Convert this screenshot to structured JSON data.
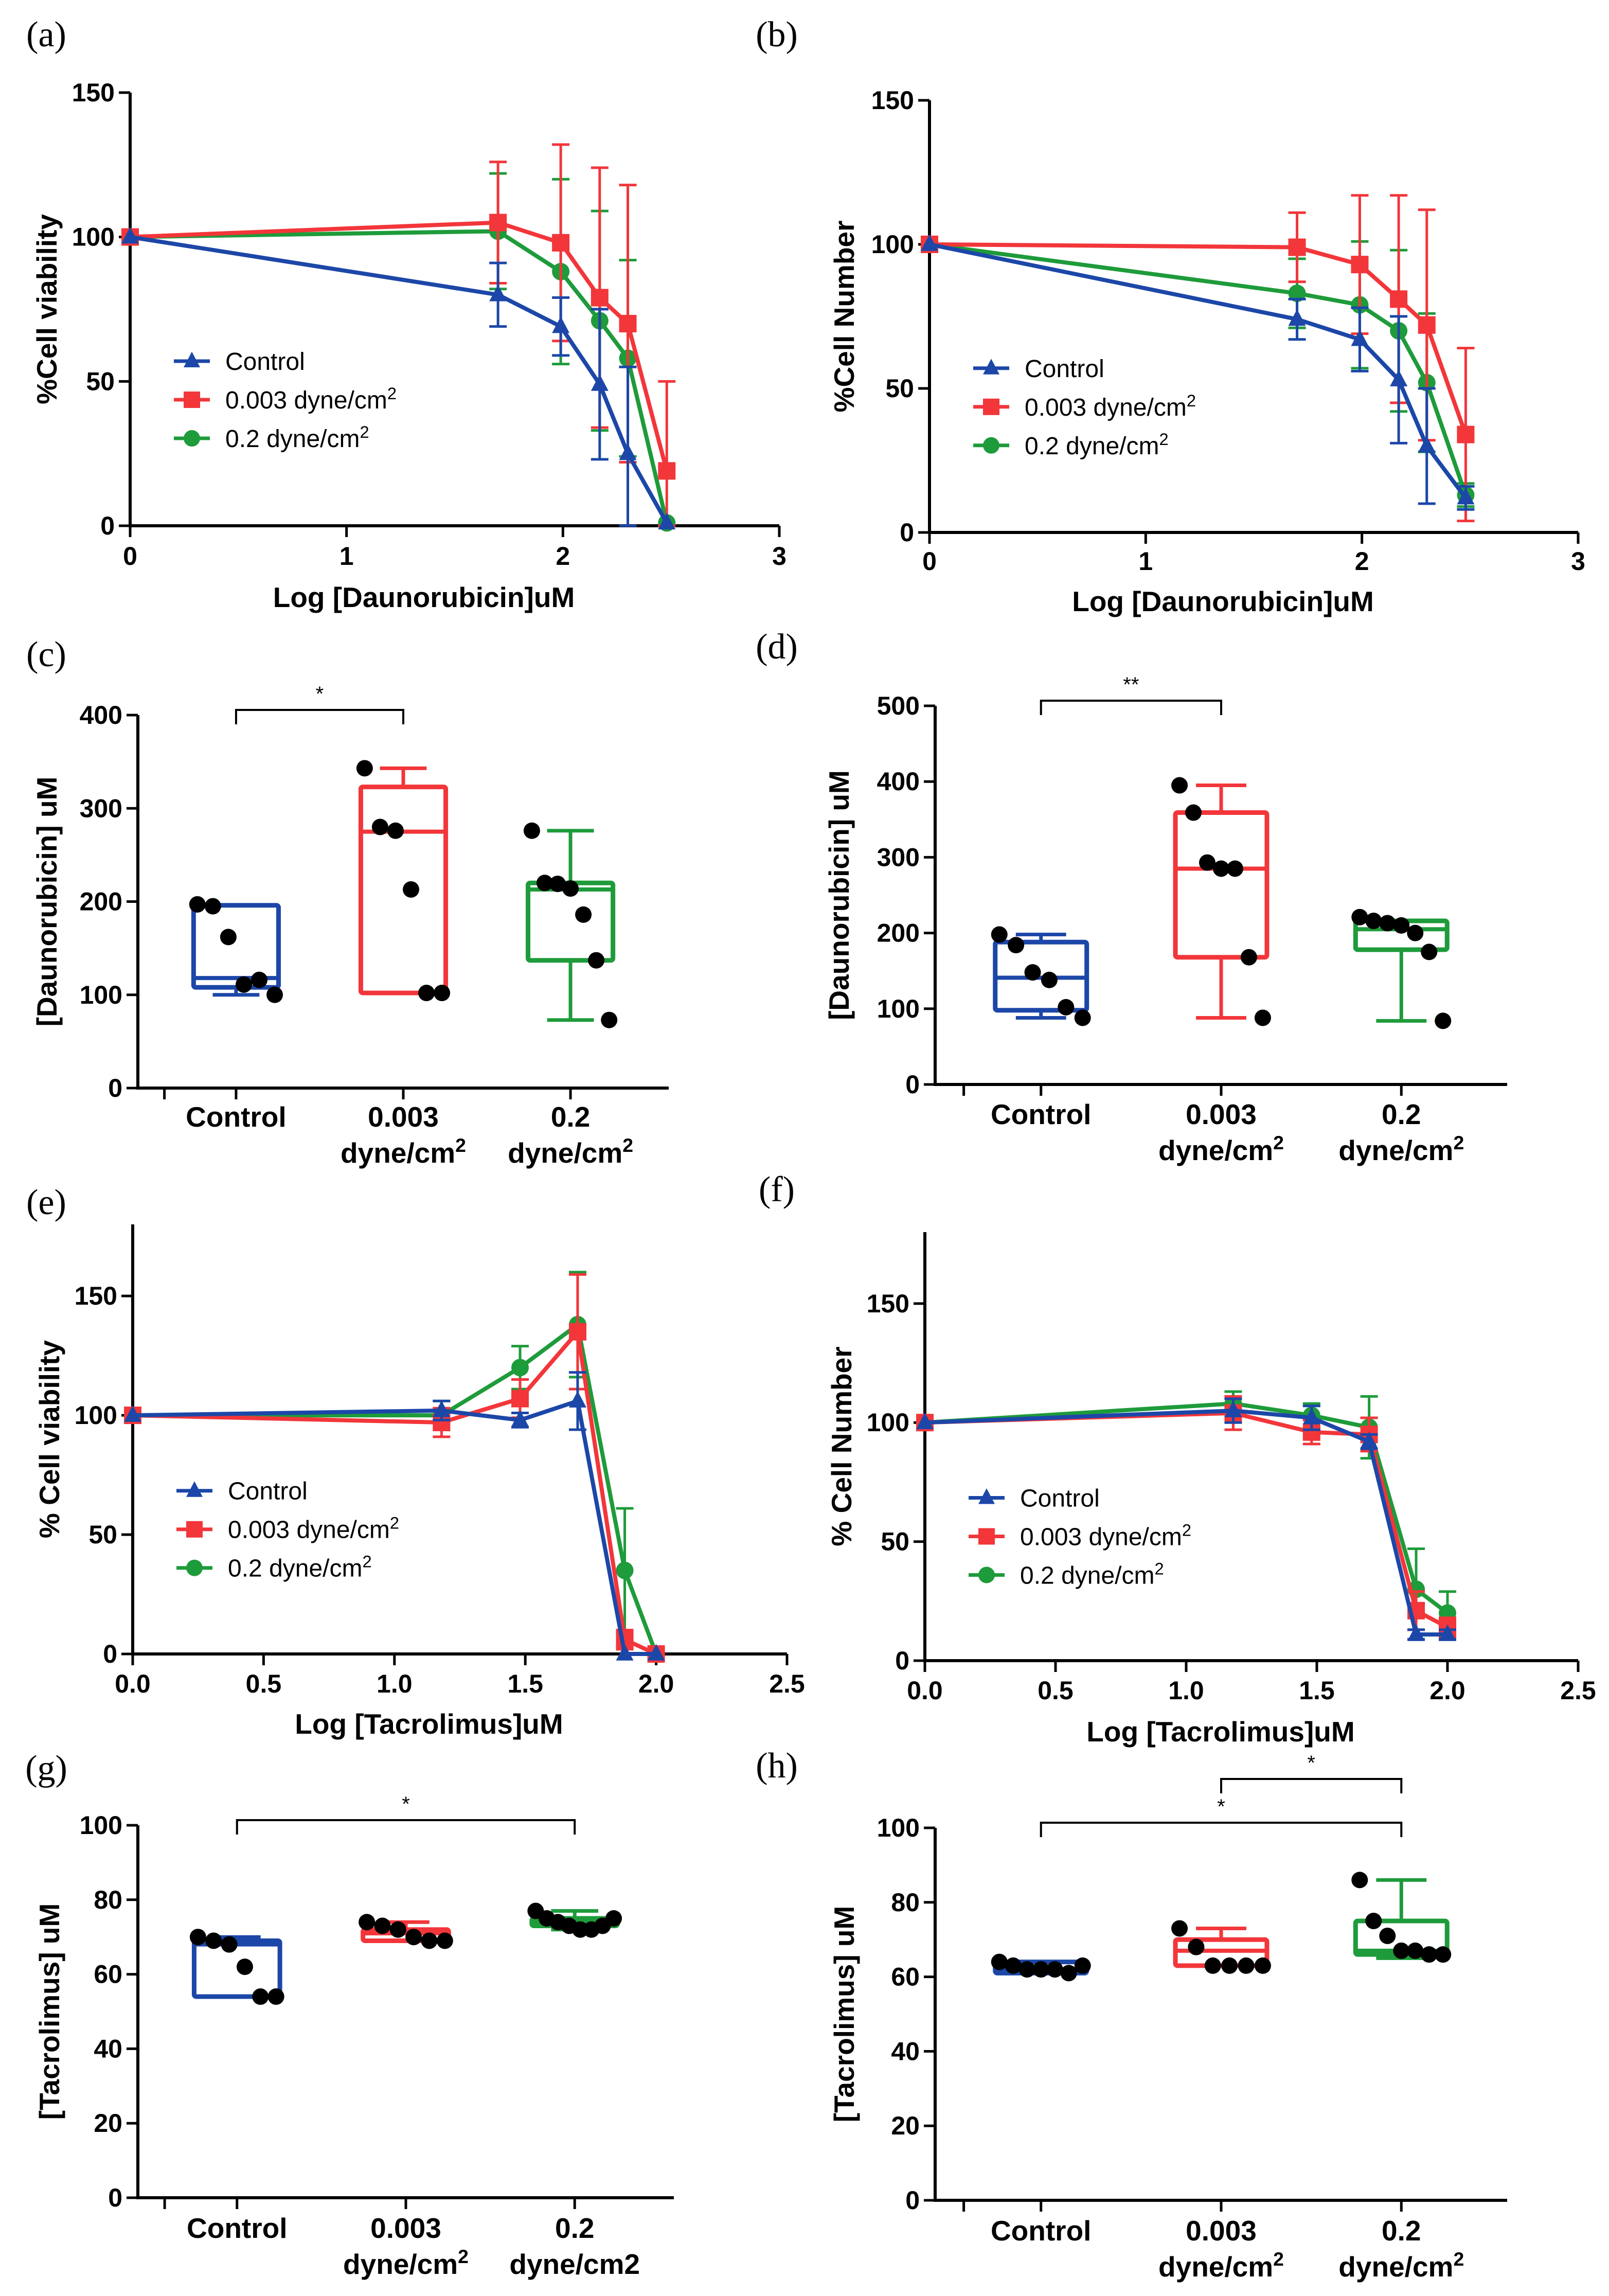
{
  "colors": {
    "control": "#1c47a8",
    "low": "#f2363a",
    "high": "#1e9b3a"
  },
  "chart_data": [
    {
      "panel": "(a)",
      "type": "line",
      "xlabel": "Log [Daunorubicin]uM",
      "ylabel": "%Cell viability",
      "xlim": [
        0,
        3
      ],
      "ylim": [
        0,
        150
      ],
      "xticks": [
        "0",
        "1",
        "2",
        "3"
      ],
      "yticks": [
        "0",
        "50",
        "100",
        "150"
      ],
      "legend_position": "bottom-left",
      "series": [
        {
          "name": "Control",
          "marker": "triangle",
          "x": [
            0,
            1.7,
            1.99,
            2.17,
            2.3,
            2.48
          ],
          "y": [
            100,
            80,
            69,
            49,
            25,
            1
          ],
          "err": [
            0,
            11,
            10,
            26,
            30,
            0
          ]
        },
        {
          "name": "0.003 dyne/cm²",
          "marker": "square",
          "x": [
            0,
            1.7,
            1.99,
            2.17,
            2.3,
            2.48
          ],
          "y": [
            100,
            105,
            98,
            79,
            70,
            19
          ],
          "err": [
            0,
            21,
            34,
            45,
            48,
            31
          ]
        },
        {
          "name": "0.2 dyne/cm²",
          "marker": "circle",
          "x": [
            0,
            1.7,
            1.99,
            2.17,
            2.3,
            2.48
          ],
          "y": [
            100,
            102,
            88,
            71,
            58,
            1
          ],
          "err": [
            0,
            20,
            32,
            38,
            34,
            0
          ]
        }
      ]
    },
    {
      "panel": "(b)",
      "type": "line",
      "xlabel": "Log [Daunorubicin]uM",
      "ylabel": "%Cell Number",
      "xlim": [
        0,
        3
      ],
      "ylim": [
        0,
        150
      ],
      "xticks": [
        "0",
        "1",
        "2",
        "3"
      ],
      "yticks": [
        "0",
        "50",
        "100",
        "150"
      ],
      "legend_position": "bottom-left",
      "series": [
        {
          "name": "Control",
          "marker": "triangle",
          "x": [
            0,
            1.7,
            1.99,
            2.17,
            2.3,
            2.48
          ],
          "y": [
            100,
            74,
            67,
            53,
            30,
            12
          ],
          "err": [
            0,
            7,
            11,
            22,
            20,
            4
          ]
        },
        {
          "name": "0.003 dyne/cm²",
          "marker": "square",
          "x": [
            0,
            1.7,
            1.99,
            2.17,
            2.3,
            2.48
          ],
          "y": [
            100,
            99,
            93,
            81,
            72,
            34
          ],
          "err": [
            0,
            12,
            24,
            36,
            40,
            30
          ]
        },
        {
          "name": "0.2 dyne/cm²",
          "marker": "circle",
          "x": [
            0,
            1.7,
            1.99,
            2.17,
            2.3,
            2.48
          ],
          "y": [
            100,
            83,
            79,
            70,
            52,
            13
          ],
          "err": [
            0,
            12,
            22,
            28,
            24,
            4
          ]
        }
      ]
    },
    {
      "panel": "(c)",
      "type": "box",
      "ylabel": "[Daunorubicin] uM",
      "ylim": [
        0,
        400
      ],
      "yticks": [
        "0",
        "100",
        "200",
        "300",
        "400"
      ],
      "categories": [
        [
          "Control",
          ""
        ],
        [
          "0.003",
          "dyne/cm²"
        ],
        [
          "0.2",
          "dyne/cm²"
        ]
      ],
      "boxes": [
        {
          "min": 100,
          "q1": 108,
          "median": 118,
          "q3": 196,
          "max": 196,
          "points": [
            197,
            195,
            162,
            111,
            116,
            100
          ]
        },
        {
          "min": 102,
          "q1": 102,
          "median": 275,
          "q3": 323,
          "max": 343,
          "points": [
            343,
            280,
            276,
            213,
            102,
            102
          ]
        },
        {
          "min": 73,
          "q1": 137,
          "median": 213,
          "q3": 220,
          "max": 276,
          "points": [
            276,
            220,
            219,
            214,
            186,
            137,
            73
          ]
        }
      ],
      "significance": [
        {
          "from": 0,
          "to": 1,
          "label": "*"
        }
      ]
    },
    {
      "panel": "(d)",
      "type": "box",
      "ylabel": "[Daunorubicin] uM",
      "ylim": [
        0,
        500
      ],
      "yticks": [
        "0",
        "100",
        "200",
        "300",
        "400",
        "500"
      ],
      "categories": [
        [
          "Control",
          ""
        ],
        [
          "0.003",
          "dyne/cm²"
        ],
        [
          "0.2",
          "dyne/cm²"
        ]
      ],
      "boxes": [
        {
          "min": 88,
          "q1": 98,
          "median": 141,
          "q3": 188,
          "max": 198,
          "points": [
            198,
            184,
            148,
            138,
            102,
            88
          ]
        },
        {
          "min": 88,
          "q1": 168,
          "median": 285,
          "q3": 359,
          "max": 395,
          "points": [
            395,
            359,
            293,
            285,
            285,
            168,
            88
          ]
        },
        {
          "min": 84,
          "q1": 178,
          "median": 205,
          "q3": 216,
          "max": 216,
          "points": [
            221,
            216,
            213,
            210,
            200,
            175,
            84
          ]
        }
      ],
      "significance": [
        {
          "from": 0,
          "to": 1,
          "label": "**"
        }
      ]
    },
    {
      "panel": "(e)",
      "type": "line",
      "xlabel": "Log [Tacrolimus]uM",
      "ylabel": "% Cell viability",
      "xlim": [
        0,
        2.5
      ],
      "ylim": [
        0,
        180
      ],
      "xticks": [
        "0.0",
        "0.5",
        "1.0",
        "1.5",
        "2.0",
        "2.5"
      ],
      "yticks": [
        "0",
        "50",
        "100",
        "150"
      ],
      "legend_position": "bottom-left",
      "series": [
        {
          "name": "Control",
          "marker": "triangle",
          "x": [
            0,
            1.18,
            1.48,
            1.7,
            1.88,
            2.0
          ],
          "y": [
            100,
            102,
            98,
            106,
            0,
            0
          ],
          "err": [
            0,
            4,
            3,
            12,
            0,
            0
          ]
        },
        {
          "name": "0.003 dyne/cm²",
          "marker": "square",
          "x": [
            0,
            1.18,
            1.48,
            1.7,
            1.88,
            2.0
          ],
          "y": [
            100,
            97,
            107,
            135,
            6,
            0
          ],
          "err": [
            0,
            6,
            8,
            24,
            4,
            0
          ]
        },
        {
          "name": "0.2 dyne/cm²",
          "marker": "circle",
          "x": [
            0,
            1.18,
            1.48,
            1.7,
            1.88,
            2.0
          ],
          "y": [
            100,
            100,
            120,
            138,
            35,
            0
          ],
          "err": [
            0,
            6,
            9,
            22,
            26,
            0
          ]
        }
      ]
    },
    {
      "panel": "(f)",
      "type": "line",
      "xlabel": "Log [Tacrolimus]uM",
      "ylabel": "% Cell Number",
      "xlim": [
        0,
        2.5
      ],
      "ylim": [
        0,
        180
      ],
      "xticks": [
        "0.0",
        "0.5",
        "1.0",
        "1.5",
        "2.0",
        "2.5"
      ],
      "yticks": [
        "0",
        "50",
        "100",
        "150"
      ],
      "legend_position": "bottom-left",
      "series": [
        {
          "name": "Control",
          "marker": "triangle",
          "x": [
            0,
            1.18,
            1.48,
            1.7,
            1.88,
            2.0
          ],
          "y": [
            100,
            105,
            102,
            92,
            11,
            11
          ],
          "err": [
            0,
            5,
            5,
            3,
            2,
            2
          ]
        },
        {
          "name": "0.003 dyne/cm²",
          "marker": "square",
          "x": [
            0,
            1.18,
            1.48,
            1.7,
            1.88,
            2.0
          ],
          "y": [
            100,
            104,
            96,
            95,
            21,
            14
          ],
          "err": [
            0,
            7,
            5,
            7,
            8,
            4
          ]
        },
        {
          "name": "0.2 dyne/cm²",
          "marker": "circle",
          "x": [
            0,
            1.18,
            1.48,
            1.7,
            1.88,
            2.0
          ],
          "y": [
            100,
            108,
            103,
            98,
            30,
            20
          ],
          "err": [
            0,
            5,
            5,
            13,
            17,
            9
          ]
        }
      ]
    },
    {
      "panel": "(g)",
      "type": "box",
      "ylabel": "[Tacrolimus] uM",
      "ylim": [
        0,
        100
      ],
      "yticks": [
        "0",
        "20",
        "40",
        "60",
        "80",
        "100"
      ],
      "categories": [
        [
          "Control",
          ""
        ],
        [
          "0.003",
          "dyne/cm²"
        ],
        [
          "0.2",
          "dyne/cm2"
        ]
      ],
      "boxes": [
        {
          "min": 54,
          "q1": 54,
          "median": 68,
          "q3": 69,
          "max": 70,
          "points": [
            70,
            69,
            68,
            62,
            54,
            54
          ]
        },
        {
          "min": 69,
          "q1": 69,
          "median": 71,
          "q3": 72,
          "max": 74,
          "points": [
            74,
            73,
            72,
            70,
            69,
            69
          ]
        },
        {
          "min": 72,
          "q1": 73,
          "median": 74,
          "q3": 75,
          "max": 77,
          "points": [
            77,
            75,
            74,
            73,
            72,
            72,
            73,
            75
          ]
        }
      ],
      "significance": [
        {
          "from": 0,
          "to": 2,
          "label": "*"
        }
      ]
    },
    {
      "panel": "(h)",
      "type": "box",
      "ylabel": "[Tacrolimus] uM",
      "ylim": [
        0,
        100
      ],
      "yticks": [
        "0",
        "20",
        "40",
        "60",
        "80",
        "100"
      ],
      "categories": [
        [
          "Control",
          ""
        ],
        [
          "0.003",
          "dyne/cm²"
        ],
        [
          "0.2",
          "dyne/cm²"
        ]
      ],
      "boxes": [
        {
          "min": 61,
          "q1": 61,
          "median": 62,
          "q3": 64,
          "max": 64,
          "points": [
            64,
            63,
            62,
            62,
            62,
            61,
            63
          ]
        },
        {
          "min": 63,
          "q1": 63,
          "median": 67,
          "q3": 70,
          "max": 73,
          "points": [
            73,
            68,
            63,
            63,
            63,
            63
          ]
        },
        {
          "min": 65,
          "q1": 66,
          "median": 67,
          "q3": 75,
          "max": 86,
          "points": [
            86,
            75,
            71,
            67,
            67,
            66,
            66
          ]
        }
      ],
      "significance": [
        {
          "from": 0,
          "to": 2,
          "label": "*"
        },
        {
          "from": 1,
          "to": 2,
          "label": "*"
        }
      ]
    }
  ]
}
